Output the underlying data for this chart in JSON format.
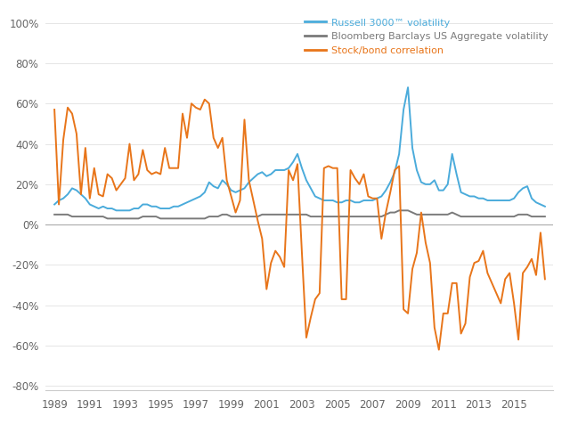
{
  "xlim": [
    1988.5,
    2017.2
  ],
  "ylim": [
    -0.82,
    1.05
  ],
  "yticks": [
    -0.8,
    -0.6,
    -0.4,
    -0.2,
    0.0,
    0.2,
    0.4,
    0.6,
    0.8,
    1.0
  ],
  "ytick_labels": [
    "-80%",
    "-60%",
    "-40%",
    "-20%",
    "0%",
    "20%",
    "40%",
    "60%",
    "80%",
    "100%"
  ],
  "xticks": [
    1989,
    1991,
    1993,
    1995,
    1997,
    1999,
    2001,
    2003,
    2005,
    2007,
    2009,
    2011,
    2013,
    2015
  ],
  "legend": {
    "entries": [
      "Russell 3000™ volatility",
      "Bloomberg Barclays US Aggregate volatility",
      "Stock/bond correlation"
    ]
  },
  "line_colors": {
    "russell": "#4aabdb",
    "bloomberg": "#7a7a7a",
    "correlation": "#e8751a"
  },
  "russell_y": [
    0.1,
    0.12,
    0.13,
    0.15,
    0.18,
    0.17,
    0.15,
    0.13,
    0.1,
    0.09,
    0.08,
    0.09,
    0.08,
    0.08,
    0.07,
    0.07,
    0.07,
    0.07,
    0.08,
    0.08,
    0.1,
    0.1,
    0.09,
    0.09,
    0.08,
    0.08,
    0.08,
    0.09,
    0.09,
    0.1,
    0.11,
    0.12,
    0.13,
    0.14,
    0.16,
    0.21,
    0.19,
    0.18,
    0.22,
    0.2,
    0.17,
    0.16,
    0.17,
    0.18,
    0.21,
    0.23,
    0.25,
    0.26,
    0.24,
    0.25,
    0.27,
    0.27,
    0.27,
    0.28,
    0.31,
    0.35,
    0.28,
    0.22,
    0.18,
    0.14,
    0.13,
    0.12,
    0.12,
    0.12,
    0.11,
    0.11,
    0.12,
    0.12,
    0.11,
    0.11,
    0.12,
    0.12,
    0.12,
    0.13,
    0.14,
    0.17,
    0.21,
    0.26,
    0.35,
    0.57,
    0.68,
    0.38,
    0.27,
    0.21,
    0.2,
    0.2,
    0.22,
    0.17,
    0.17,
    0.2,
    0.35,
    0.25,
    0.16,
    0.15,
    0.14,
    0.14,
    0.13,
    0.13,
    0.12,
    0.12,
    0.12,
    0.12,
    0.12,
    0.12,
    0.13,
    0.16,
    0.18,
    0.19,
    0.13,
    0.11,
    0.1,
    0.09
  ],
  "bloomberg_y": [
    0.05,
    0.05,
    0.05,
    0.05,
    0.04,
    0.04,
    0.04,
    0.04,
    0.04,
    0.04,
    0.04,
    0.04,
    0.03,
    0.03,
    0.03,
    0.03,
    0.03,
    0.03,
    0.03,
    0.03,
    0.04,
    0.04,
    0.04,
    0.04,
    0.03,
    0.03,
    0.03,
    0.03,
    0.03,
    0.03,
    0.03,
    0.03,
    0.03,
    0.03,
    0.03,
    0.04,
    0.04,
    0.04,
    0.05,
    0.05,
    0.04,
    0.04,
    0.04,
    0.04,
    0.04,
    0.04,
    0.04,
    0.05,
    0.05,
    0.05,
    0.05,
    0.05,
    0.05,
    0.05,
    0.05,
    0.05,
    0.05,
    0.05,
    0.04,
    0.04,
    0.04,
    0.04,
    0.04,
    0.04,
    0.04,
    0.04,
    0.04,
    0.04,
    0.04,
    0.04,
    0.04,
    0.04,
    0.04,
    0.04,
    0.04,
    0.05,
    0.06,
    0.06,
    0.07,
    0.07,
    0.07,
    0.06,
    0.05,
    0.05,
    0.05,
    0.05,
    0.05,
    0.05,
    0.05,
    0.05,
    0.06,
    0.05,
    0.04,
    0.04,
    0.04,
    0.04,
    0.04,
    0.04,
    0.04,
    0.04,
    0.04,
    0.04,
    0.04,
    0.04,
    0.04,
    0.05,
    0.05,
    0.05,
    0.04,
    0.04,
    0.04,
    0.04
  ],
  "correlation_y": [
    0.57,
    0.1,
    0.42,
    0.58,
    0.55,
    0.45,
    0.15,
    0.38,
    0.13,
    0.28,
    0.15,
    0.14,
    0.25,
    0.23,
    0.17,
    0.2,
    0.23,
    0.4,
    0.22,
    0.25,
    0.37,
    0.27,
    0.25,
    0.26,
    0.25,
    0.38,
    0.28,
    0.28,
    0.28,
    0.55,
    0.43,
    0.6,
    0.58,
    0.57,
    0.62,
    0.6,
    0.43,
    0.38,
    0.43,
    0.22,
    0.14,
    0.06,
    0.12,
    0.52,
    0.22,
    0.12,
    0.02,
    -0.07,
    -0.32,
    -0.19,
    -0.13,
    -0.16,
    -0.21,
    0.27,
    0.22,
    0.3,
    -0.14,
    -0.56,
    -0.46,
    -0.37,
    -0.34,
    0.28,
    0.29,
    0.28,
    0.28,
    -0.37,
    -0.37,
    0.27,
    0.23,
    0.2,
    0.25,
    0.14,
    0.13,
    0.13,
    -0.07,
    0.06,
    0.16,
    0.27,
    0.29,
    -0.42,
    -0.44,
    -0.22,
    -0.14,
    0.06,
    -0.09,
    -0.19,
    -0.51,
    -0.62,
    -0.44,
    -0.44,
    -0.29,
    -0.29,
    -0.54,
    -0.49,
    -0.26,
    -0.19,
    -0.18,
    -0.13,
    -0.24,
    -0.29,
    -0.34,
    -0.39,
    -0.27,
    -0.24,
    -0.39,
    -0.57,
    -0.24,
    -0.21,
    -0.17,
    -0.25,
    -0.04,
    -0.27
  ],
  "background_color": "#ffffff",
  "grid_color": "#e0e0e0",
  "zero_line_color": "#aaaaaa",
  "spine_color": "#cccccc",
  "tick_color": "#666666",
  "legend_text_colors": [
    "#4aabdb",
    "#7a7a7a",
    "#e8751a"
  ]
}
